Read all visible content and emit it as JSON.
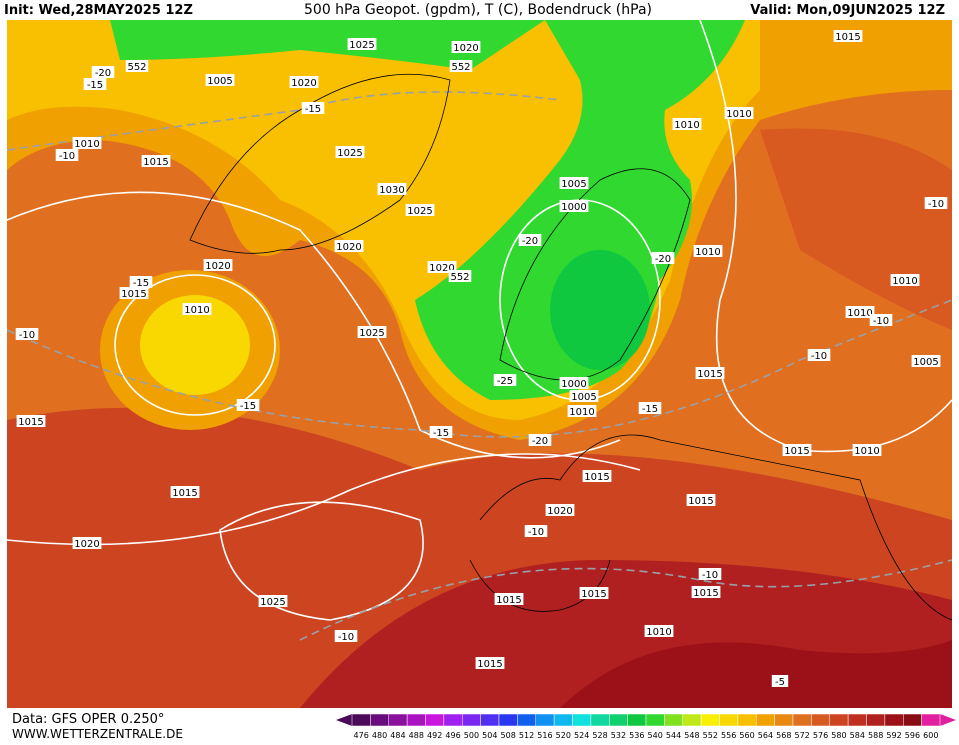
{
  "header": {
    "init": "Init: Wed,28MAY2025 12Z",
    "title": "500 hPa Geopot. (gpdm), T (C), Bodendruck (hPa)",
    "valid": "Valid: Mon,09JUN2025 12Z"
  },
  "footer": {
    "data": "Data: GFS OPER 0.250°",
    "site": "WWW.WETTERZENTRALE.DE"
  },
  "map": {
    "labels": [
      "1025",
      "1020",
      "552",
      "552",
      "1015",
      "-20",
      "-15",
      "1005",
      "1020",
      "-15",
      "1010",
      "1010",
      "-10",
      "1010",
      "1015",
      "1025",
      "1030",
      "1025",
      "1005",
      "1000",
      "-10",
      "-20",
      "1020",
      "1010",
      "1020",
      "552",
      "-20",
      "1020",
      "-15",
      "1015",
      "1010",
      "1010",
      "1010",
      "-10",
      "-10",
      "1025",
      "-10",
      "1005",
      "1015",
      "-25",
      "1000",
      "1005",
      "1010",
      "-15",
      "-15",
      "1015",
      "-15",
      "-20",
      "1015",
      "1010",
      "1015",
      "1015",
      "1015",
      "1020",
      "-10",
      "1020",
      "-10",
      "1015",
      "1015",
      "1015",
      "1025",
      "-10",
      "1010",
      "1015",
      "-5"
    ],
    "colorbar": {
      "levels": [
        476,
        480,
        484,
        488,
        492,
        496,
        500,
        504,
        508,
        512,
        516,
        520,
        524,
        528,
        532,
        536,
        540,
        544,
        548,
        552,
        556,
        560,
        564,
        568,
        572,
        576,
        580,
        584,
        588,
        592,
        596,
        600
      ],
      "colors": [
        "#4b0a5a",
        "#6a0d7c",
        "#8a109e",
        "#aa14c0",
        "#c818e0",
        "#a020f0",
        "#7a28f0",
        "#5030f0",
        "#2838f0",
        "#1060f0",
        "#1090f0",
        "#10b8f0",
        "#10e0e0",
        "#10d8a0",
        "#10d070",
        "#10c840",
        "#30d830",
        "#80e020",
        "#c0e818",
        "#f8f000",
        "#f8d800",
        "#f8c000",
        "#f0a000",
        "#e88810",
        "#e07020",
        "#d85a20",
        "#cc4420",
        "#c03020",
        "#b02020",
        "#9c1018",
        "#880c14",
        "#e020a0"
      ]
    }
  }
}
